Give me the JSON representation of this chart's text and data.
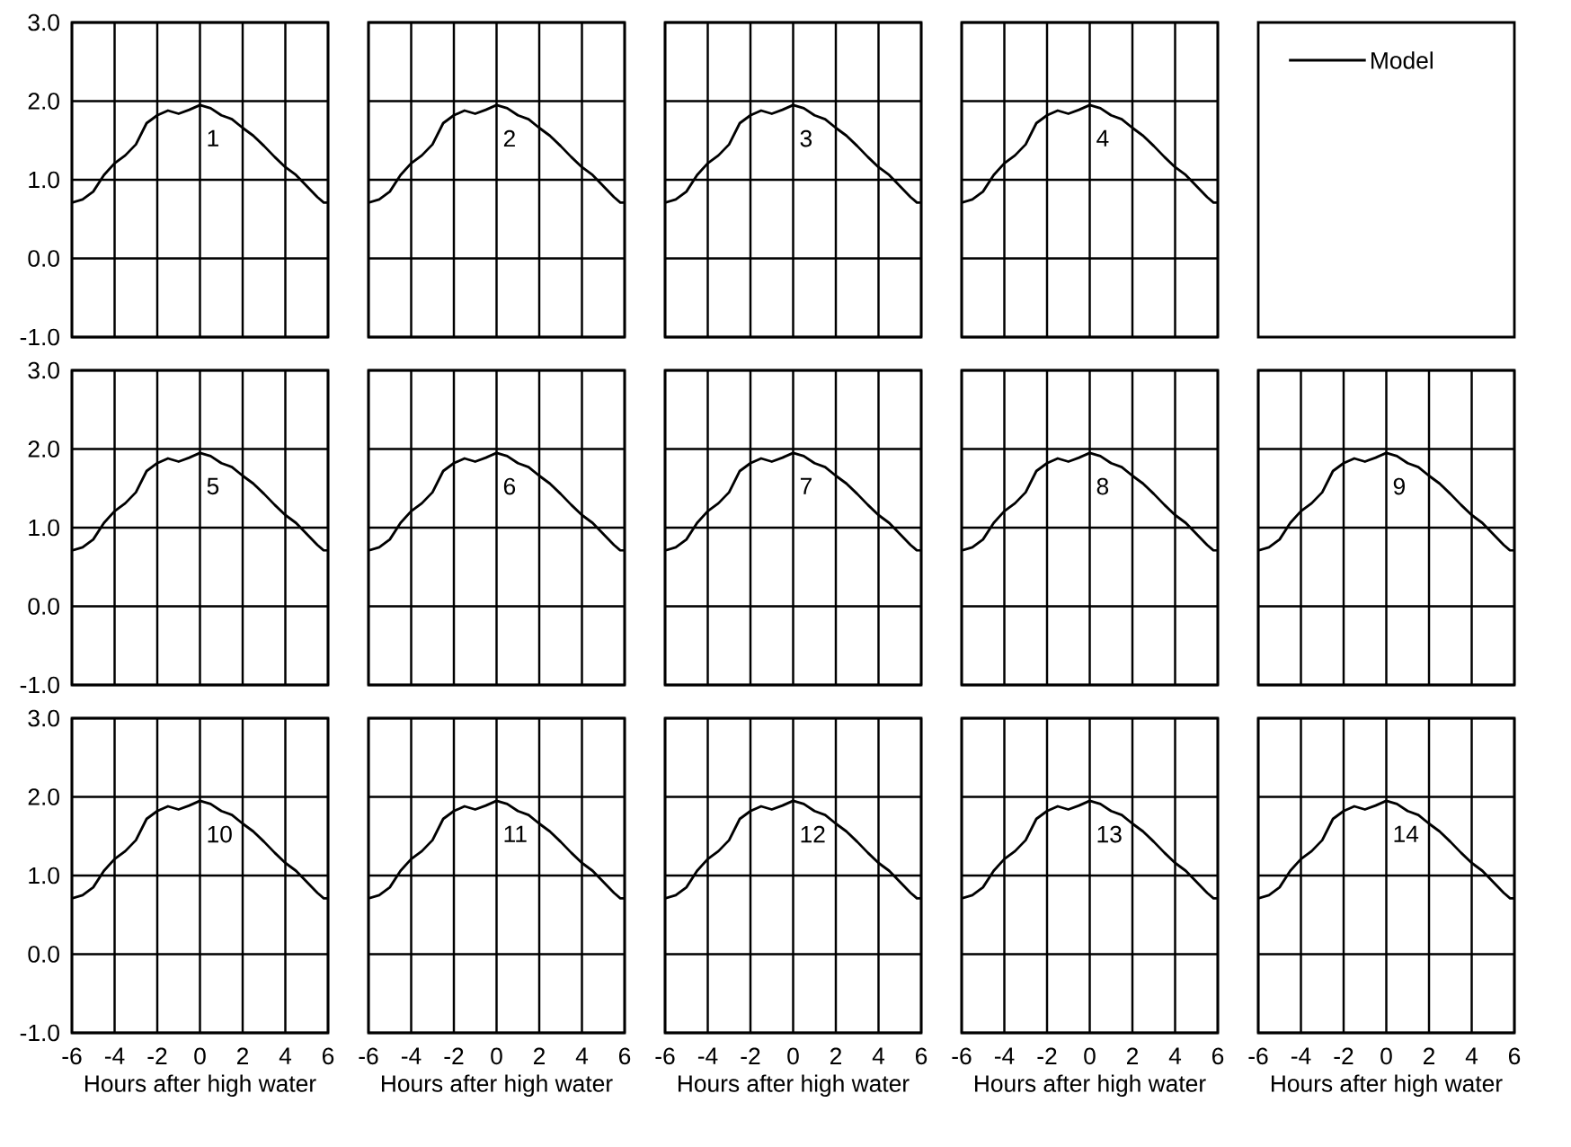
{
  "chart_data": [
    {
      "type": "line",
      "annotations": [
        "1"
      ],
      "tick_labels": "y",
      "grid": true,
      "xlim": [
        -6,
        6
      ],
      "ylim": [
        -1,
        3
      ],
      "xticks": [
        -6,
        -4,
        -2,
        0,
        2,
        4,
        6
      ],
      "yticks": [
        {
          "value": -1,
          "label": "-1.0"
        },
        {
          "value": 0,
          "label": "0.0"
        },
        {
          "value": 1,
          "label": "1.0"
        },
        {
          "value": 2,
          "label": "2.0"
        },
        {
          "value": 3,
          "label": "3.0"
        }
      ],
      "x": [
        -6,
        -5.5,
        -5,
        -4.5,
        -4,
        -3.5,
        -3,
        -2.5,
        -2,
        -1.5,
        -1,
        -0.5,
        0,
        0.5,
        1,
        1.5,
        2,
        2.5,
        3,
        3.5,
        4,
        4.5,
        5,
        5.5,
        5.8,
        6
      ],
      "series": [
        {
          "color": "#000000",
          "values": [
            0.71,
            0.75,
            0.85,
            1.06,
            1.21,
            1.31,
            1.45,
            1.72,
            1.82,
            1.88,
            1.84,
            1.89,
            1.95,
            1.91,
            1.82,
            1.77,
            1.66,
            1.56,
            1.43,
            1.29,
            1.16,
            1.06,
            0.92,
            0.78,
            0.71,
            0.71
          ]
        }
      ]
    },
    {
      "type": "line",
      "annotations": [
        "2"
      ],
      "tick_labels": false,
      "grid": true,
      "xlim": [
        -6,
        6
      ],
      "ylim": [
        -1,
        3
      ],
      "xticks": [
        -6,
        -4,
        -2,
        0,
        2,
        4,
        6
      ],
      "yticks": [
        -1,
        0,
        1,
        2,
        3
      ],
      "x": [
        -6,
        -5.5,
        -5,
        -4.5,
        -4,
        -3.5,
        -3,
        -2.5,
        -2,
        -1.5,
        -1,
        -0.5,
        0,
        0.5,
        1,
        1.5,
        2,
        2.5,
        3,
        3.5,
        4,
        4.5,
        5,
        5.5,
        5.8,
        6
      ],
      "series": [
        {
          "color": "#000000",
          "values": [
            0.71,
            0.75,
            0.85,
            1.06,
            1.21,
            1.31,
            1.45,
            1.72,
            1.82,
            1.88,
            1.84,
            1.89,
            1.95,
            1.91,
            1.82,
            1.77,
            1.66,
            1.56,
            1.43,
            1.29,
            1.16,
            1.06,
            0.92,
            0.78,
            0.71,
            0.71
          ]
        }
      ]
    },
    {
      "type": "line",
      "annotations": [
        "3"
      ],
      "tick_labels": false,
      "grid": true,
      "xlim": [
        -6,
        6
      ],
      "ylim": [
        -1,
        3
      ],
      "xticks": [
        -6,
        -4,
        -2,
        0,
        2,
        4,
        6
      ],
      "yticks": [
        -1,
        0,
        1,
        2,
        3
      ],
      "x": [
        -6,
        -5.5,
        -5,
        -4.5,
        -4,
        -3.5,
        -3,
        -2.5,
        -2,
        -1.5,
        -1,
        -0.5,
        0,
        0.5,
        1,
        1.5,
        2,
        2.5,
        3,
        3.5,
        4,
        4.5,
        5,
        5.5,
        5.8,
        6
      ],
      "series": [
        {
          "color": "#000000",
          "values": [
            0.71,
            0.75,
            0.85,
            1.06,
            1.21,
            1.31,
            1.45,
            1.72,
            1.82,
            1.88,
            1.84,
            1.89,
            1.95,
            1.91,
            1.82,
            1.77,
            1.66,
            1.56,
            1.43,
            1.29,
            1.16,
            1.06,
            0.92,
            0.78,
            0.71,
            0.71
          ]
        }
      ]
    },
    {
      "type": "line",
      "annotations": [
        "4"
      ],
      "tick_labels": false,
      "grid": true,
      "xlim": [
        -6,
        6
      ],
      "ylim": [
        -1,
        3
      ],
      "xticks": [
        -6,
        -4,
        -2,
        0,
        2,
        4,
        6
      ],
      "yticks": [
        -1,
        0,
        1,
        2,
        3
      ],
      "x": [
        -6,
        -5.5,
        -5,
        -4.5,
        -4,
        -3.5,
        -3,
        -2.5,
        -2,
        -1.5,
        -1,
        -0.5,
        0,
        0.5,
        1,
        1.5,
        2,
        2.5,
        3,
        3.5,
        4,
        4.5,
        5,
        5.5,
        5.8,
        6
      ],
      "series": [
        {
          "color": "#000000",
          "values": [
            0.71,
            0.75,
            0.85,
            1.06,
            1.21,
            1.31,
            1.45,
            1.72,
            1.82,
            1.88,
            1.84,
            1.89,
            1.95,
            1.91,
            1.82,
            1.77,
            1.66,
            1.56,
            1.43,
            1.29,
            1.16,
            1.06,
            0.92,
            0.78,
            0.71,
            0.71
          ]
        }
      ]
    },
    {
      "type": "other",
      "annotations": [
        "Model"
      ]
    },
    {
      "type": "line",
      "annotations": [
        "5"
      ],
      "tick_labels": "y",
      "grid": true,
      "xlim": [
        -6,
        6
      ],
      "ylim": [
        -1,
        3
      ],
      "xticks": [
        -6,
        -4,
        -2,
        0,
        2,
        4,
        6
      ],
      "yticks": [
        {
          "value": -1,
          "label": "-1.0"
        },
        {
          "value": 0,
          "label": "0.0"
        },
        {
          "value": 1,
          "label": "1.0"
        },
        {
          "value": 2,
          "label": "2.0"
        },
        {
          "value": 3,
          "label": "3.0"
        }
      ],
      "x": [
        -6,
        -5.5,
        -5,
        -4.5,
        -4,
        -3.5,
        -3,
        -2.5,
        -2,
        -1.5,
        -1,
        -0.5,
        0,
        0.5,
        1,
        1.5,
        2,
        2.5,
        3,
        3.5,
        4,
        4.5,
        5,
        5.5,
        5.8,
        6
      ],
      "series": [
        {
          "color": "#000000",
          "values": [
            0.71,
            0.75,
            0.85,
            1.06,
            1.21,
            1.31,
            1.45,
            1.72,
            1.82,
            1.88,
            1.84,
            1.89,
            1.95,
            1.91,
            1.82,
            1.77,
            1.66,
            1.56,
            1.43,
            1.29,
            1.16,
            1.06,
            0.92,
            0.78,
            0.71,
            0.71
          ]
        }
      ]
    },
    {
      "type": "line",
      "annotations": [
        "6"
      ],
      "tick_labels": false,
      "grid": true,
      "xlim": [
        -6,
        6
      ],
      "ylim": [
        -1,
        3
      ],
      "xticks": [
        -6,
        -4,
        -2,
        0,
        2,
        4,
        6
      ],
      "yticks": [
        -1,
        0,
        1,
        2,
        3
      ],
      "x": [
        -6,
        -5.5,
        -5,
        -4.5,
        -4,
        -3.5,
        -3,
        -2.5,
        -2,
        -1.5,
        -1,
        -0.5,
        0,
        0.5,
        1,
        1.5,
        2,
        2.5,
        3,
        3.5,
        4,
        4.5,
        5,
        5.5,
        5.8,
        6
      ],
      "series": [
        {
          "color": "#000000",
          "values": [
            0.71,
            0.75,
            0.85,
            1.06,
            1.21,
            1.31,
            1.45,
            1.72,
            1.82,
            1.88,
            1.84,
            1.89,
            1.95,
            1.91,
            1.82,
            1.77,
            1.66,
            1.56,
            1.43,
            1.29,
            1.16,
            1.06,
            0.92,
            0.78,
            0.71,
            0.71
          ]
        }
      ]
    },
    {
      "type": "line",
      "annotations": [
        "7"
      ],
      "tick_labels": false,
      "grid": true,
      "xlim": [
        -6,
        6
      ],
      "ylim": [
        -1,
        3
      ],
      "xticks": [
        -6,
        -4,
        -2,
        0,
        2,
        4,
        6
      ],
      "yticks": [
        -1,
        0,
        1,
        2,
        3
      ],
      "x": [
        -6,
        -5.5,
        -5,
        -4.5,
        -4,
        -3.5,
        -3,
        -2.5,
        -2,
        -1.5,
        -1,
        -0.5,
        0,
        0.5,
        1,
        1.5,
        2,
        2.5,
        3,
        3.5,
        4,
        4.5,
        5,
        5.5,
        5.8,
        6
      ],
      "series": [
        {
          "color": "#000000",
          "values": [
            0.71,
            0.75,
            0.85,
            1.06,
            1.21,
            1.31,
            1.45,
            1.72,
            1.82,
            1.88,
            1.84,
            1.89,
            1.95,
            1.91,
            1.82,
            1.77,
            1.66,
            1.56,
            1.43,
            1.29,
            1.16,
            1.06,
            0.92,
            0.78,
            0.71,
            0.71
          ]
        }
      ]
    },
    {
      "type": "line",
      "annotations": [
        "8"
      ],
      "tick_labels": false,
      "grid": true,
      "xlim": [
        -6,
        6
      ],
      "ylim": [
        -1,
        3
      ],
      "xticks": [
        -6,
        -4,
        -2,
        0,
        2,
        4,
        6
      ],
      "yticks": [
        -1,
        0,
        1,
        2,
        3
      ],
      "x": [
        -6,
        -5.5,
        -5,
        -4.5,
        -4,
        -3.5,
        -3,
        -2.5,
        -2,
        -1.5,
        -1,
        -0.5,
        0,
        0.5,
        1,
        1.5,
        2,
        2.5,
        3,
        3.5,
        4,
        4.5,
        5,
        5.5,
        5.8,
        6
      ],
      "series": [
        {
          "color": "#000000",
          "values": [
            0.71,
            0.75,
            0.85,
            1.06,
            1.21,
            1.31,
            1.45,
            1.72,
            1.82,
            1.88,
            1.84,
            1.89,
            1.95,
            1.91,
            1.82,
            1.77,
            1.66,
            1.56,
            1.43,
            1.29,
            1.16,
            1.06,
            0.92,
            0.78,
            0.71,
            0.71
          ]
        }
      ]
    },
    {
      "type": "line",
      "annotations": [
        "9"
      ],
      "tick_labels": false,
      "grid": true,
      "xlim": [
        -6,
        6
      ],
      "ylim": [
        -1,
        3
      ],
      "xticks": [
        -6,
        -4,
        -2,
        0,
        2,
        4,
        6
      ],
      "yticks": [
        -1,
        0,
        1,
        2,
        3
      ],
      "x": [
        -6,
        -5.5,
        -5,
        -4.5,
        -4,
        -3.5,
        -3,
        -2.5,
        -2,
        -1.5,
        -1,
        -0.5,
        0,
        0.5,
        1,
        1.5,
        2,
        2.5,
        3,
        3.5,
        4,
        4.5,
        5,
        5.5,
        5.8,
        6
      ],
      "series": [
        {
          "color": "#000000",
          "values": [
            0.71,
            0.75,
            0.85,
            1.06,
            1.21,
            1.31,
            1.45,
            1.72,
            1.82,
            1.88,
            1.84,
            1.89,
            1.95,
            1.91,
            1.82,
            1.77,
            1.66,
            1.56,
            1.43,
            1.29,
            1.16,
            1.06,
            0.92,
            0.78,
            0.71,
            0.71
          ]
        }
      ]
    },
    {
      "type": "line",
      "annotations": [
        "10"
      ],
      "xlabel": "Hours after high water",
      "grid": true,
      "xlim": [
        -6,
        6
      ],
      "ylim": [
        -1,
        3
      ],
      "xticks": [
        -6,
        -4,
        -2,
        0,
        2,
        4,
        6
      ],
      "yticks": [
        {
          "value": -1,
          "label": "-1.0"
        },
        {
          "value": 0,
          "label": "0.0"
        },
        {
          "value": 1,
          "label": "1.0"
        },
        {
          "value": 2,
          "label": "2.0"
        },
        {
          "value": 3,
          "label": "3.0"
        }
      ],
      "x": [
        -6,
        -5.5,
        -5,
        -4.5,
        -4,
        -3.5,
        -3,
        -2.5,
        -2,
        -1.5,
        -1,
        -0.5,
        0,
        0.5,
        1,
        1.5,
        2,
        2.5,
        3,
        3.5,
        4,
        4.5,
        5,
        5.5,
        5.8,
        6
      ],
      "series": [
        {
          "color": "#000000",
          "values": [
            0.71,
            0.75,
            0.85,
            1.06,
            1.21,
            1.31,
            1.45,
            1.72,
            1.82,
            1.88,
            1.84,
            1.89,
            1.95,
            1.91,
            1.82,
            1.77,
            1.66,
            1.56,
            1.43,
            1.29,
            1.16,
            1.06,
            0.92,
            0.78,
            0.71,
            0.71
          ]
        }
      ]
    },
    {
      "type": "line",
      "annotations": [
        "11"
      ],
      "xlabel": "Hours after high water",
      "tick_labels": "x",
      "grid": true,
      "xlim": [
        -6,
        6
      ],
      "ylim": [
        -1,
        3
      ],
      "xticks": [
        -6,
        -4,
        -2,
        0,
        2,
        4,
        6
      ],
      "yticks": [
        -1,
        0,
        1,
        2,
        3
      ],
      "x": [
        -6,
        -5.5,
        -5,
        -4.5,
        -4,
        -3.5,
        -3,
        -2.5,
        -2,
        -1.5,
        -1,
        -0.5,
        0,
        0.5,
        1,
        1.5,
        2,
        2.5,
        3,
        3.5,
        4,
        4.5,
        5,
        5.5,
        5.8,
        6
      ],
      "series": [
        {
          "color": "#000000",
          "values": [
            0.71,
            0.75,
            0.85,
            1.06,
            1.21,
            1.31,
            1.45,
            1.72,
            1.82,
            1.88,
            1.84,
            1.89,
            1.95,
            1.91,
            1.82,
            1.77,
            1.66,
            1.56,
            1.43,
            1.29,
            1.16,
            1.06,
            0.92,
            0.78,
            0.71,
            0.71
          ]
        }
      ]
    },
    {
      "type": "line",
      "annotations": [
        "12"
      ],
      "xlabel": "Hours after high water",
      "tick_labels": "x",
      "grid": true,
      "xlim": [
        -6,
        6
      ],
      "ylim": [
        -1,
        3
      ],
      "xticks": [
        -6,
        -4,
        -2,
        0,
        2,
        4,
        6
      ],
      "yticks": [
        -1,
        0,
        1,
        2,
        3
      ],
      "x": [
        -6,
        -5.5,
        -5,
        -4.5,
        -4,
        -3.5,
        -3,
        -2.5,
        -2,
        -1.5,
        -1,
        -0.5,
        0,
        0.5,
        1,
        1.5,
        2,
        2.5,
        3,
        3.5,
        4,
        4.5,
        5,
        5.5,
        5.8,
        6
      ],
      "series": [
        {
          "color": "#000000",
          "values": [
            0.71,
            0.75,
            0.85,
            1.06,
            1.21,
            1.31,
            1.45,
            1.72,
            1.82,
            1.88,
            1.84,
            1.89,
            1.95,
            1.91,
            1.82,
            1.77,
            1.66,
            1.56,
            1.43,
            1.29,
            1.16,
            1.06,
            0.92,
            0.78,
            0.71,
            0.71
          ]
        }
      ]
    },
    {
      "type": "line",
      "annotations": [
        "13"
      ],
      "xlabel": "Hours after high water",
      "tick_labels": "x",
      "grid": true,
      "xlim": [
        -6,
        6
      ],
      "ylim": [
        -1,
        3
      ],
      "xticks": [
        -6,
        -4,
        -2,
        0,
        2,
        4,
        6
      ],
      "yticks": [
        -1,
        0,
        1,
        2,
        3
      ],
      "x": [
        -6,
        -5.5,
        -5,
        -4.5,
        -4,
        -3.5,
        -3,
        -2.5,
        -2,
        -1.5,
        -1,
        -0.5,
        0,
        0.5,
        1,
        1.5,
        2,
        2.5,
        3,
        3.5,
        4,
        4.5,
        5,
        5.5,
        5.8,
        6
      ],
      "series": [
        {
          "color": "#000000",
          "values": [
            0.71,
            0.75,
            0.85,
            1.06,
            1.21,
            1.31,
            1.45,
            1.72,
            1.82,
            1.88,
            1.84,
            1.89,
            1.95,
            1.91,
            1.82,
            1.77,
            1.66,
            1.56,
            1.43,
            1.29,
            1.16,
            1.06,
            0.92,
            0.78,
            0.71,
            0.71
          ]
        }
      ]
    },
    {
      "type": "line",
      "annotations": [
        "14"
      ],
      "xlabel": "Hours after high water",
      "tick_labels": "x",
      "grid": true,
      "xlim": [
        -6,
        6
      ],
      "ylim": [
        -1,
        3
      ],
      "xticks": [
        -6,
        -4,
        -2,
        0,
        2,
        4,
        6
      ],
      "yticks": [
        -1,
        0,
        1,
        2,
        3
      ],
      "x": [
        -6,
        -5.5,
        -5,
        -4.5,
        -4,
        -3.5,
        -3,
        -2.5,
        -2,
        -1.5,
        -1,
        -0.5,
        0,
        0.5,
        1,
        1.5,
        2,
        2.5,
        3,
        3.5,
        4,
        4.5,
        5,
        5.5,
        5.8,
        6
      ],
      "series": [
        {
          "color": "#000000",
          "values": [
            0.71,
            0.75,
            0.85,
            1.06,
            1.21,
            1.31,
            1.45,
            1.72,
            1.82,
            1.88,
            1.84,
            1.89,
            1.95,
            1.91,
            1.82,
            1.77,
            1.66,
            1.56,
            1.43,
            1.29,
            1.16,
            1.06,
            0.92,
            0.78,
            0.71,
            0.71
          ]
        }
      ]
    }
  ]
}
